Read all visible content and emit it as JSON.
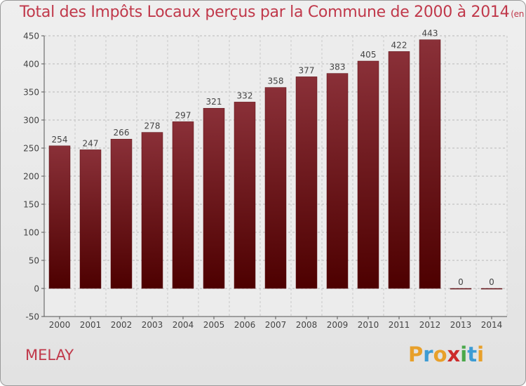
{
  "title": "Total des Impôts Locaux perçus par la Commune de 2000 à 2014",
  "unit": "(en milliers d'€)",
  "commune": "MELAY",
  "logo": {
    "letters": [
      "P",
      "r",
      "o",
      "x",
      "i",
      "t",
      "i"
    ],
    "colors": [
      "#e8a02a",
      "#3d9cd4",
      "#e8a02a",
      "#cc2a2a",
      "#4aa84a",
      "#3d9cd4",
      "#e8a02a"
    ]
  },
  "colors": {
    "bar_top": "#8a3038",
    "bar_bottom": "#4d0000",
    "title": "#c0384a"
  },
  "chart_data": {
    "type": "bar",
    "title": "Total des Impôts Locaux perçus par la Commune de 2000 à 2014",
    "categories": [
      "2000",
      "2001",
      "2002",
      "2003",
      "2004",
      "2005",
      "2006",
      "2007",
      "2008",
      "2009",
      "2010",
      "2011",
      "2012",
      "2013",
      "2014"
    ],
    "values": [
      254,
      247,
      266,
      278,
      297,
      321,
      332,
      358,
      377,
      383,
      405,
      422,
      443,
      0,
      0
    ],
    "ylim": [
      -50,
      450
    ],
    "yticks": [
      -50,
      0,
      50,
      100,
      150,
      200,
      250,
      300,
      350,
      400,
      450
    ],
    "grid": true,
    "xlabel": "",
    "ylabel": ""
  }
}
